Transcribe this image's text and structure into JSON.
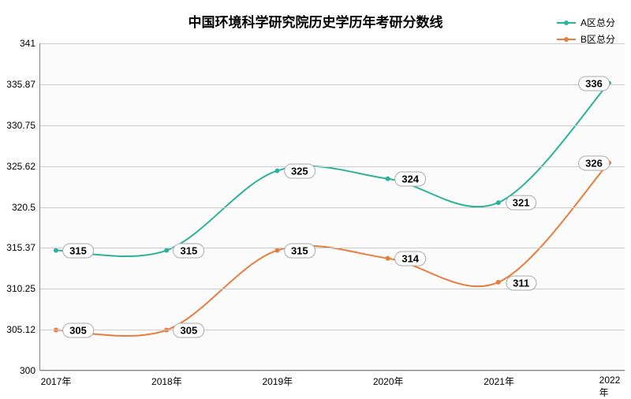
{
  "chart": {
    "type": "line",
    "title": "中国环境科学研究院历史学历年考研分数线",
    "title_fontsize": 17,
    "background_color": "#fbfbfb",
    "grid_color": "#cccccc",
    "axis_color": "#888888",
    "label_fontsize": 12,
    "tick_fontsize": 12,
    "ylim": [
      300,
      341
    ],
    "yticks": [
      300,
      305.12,
      310.25,
      315.37,
      320.5,
      325.62,
      330.75,
      335.87,
      341
    ],
    "xcategories": [
      "2017年",
      "2018年",
      "2019年",
      "2020年",
      "2021年",
      "2022年"
    ],
    "series": [
      {
        "name": "A区总分",
        "color": "#2bb39a",
        "line_width": 2,
        "marker_radius": 3,
        "values": [
          315,
          315,
          325,
          324,
          321,
          336
        ]
      },
      {
        "name": "B区总分",
        "color": "#e87c3a",
        "line_width": 2,
        "marker_radius": 3,
        "values": [
          305,
          305,
          315,
          314,
          311,
          326
        ]
      }
    ],
    "data_label_fontsize": 13
  }
}
